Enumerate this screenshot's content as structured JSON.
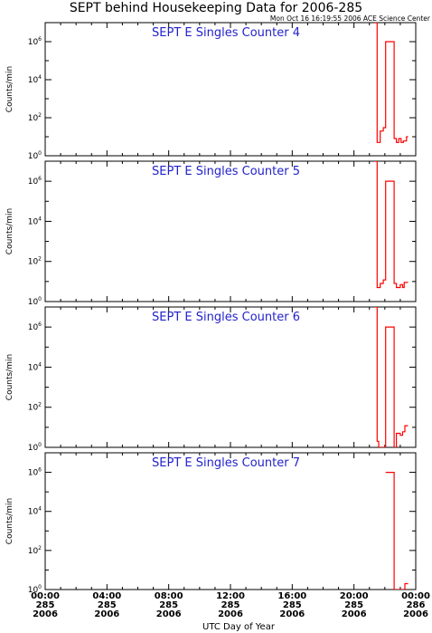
{
  "title": "SEPT behind Housekeeping Data for 2006-285",
  "timestamp": "Mon Oct 16 16:19:55 2006 ACE Science Center",
  "colors": {
    "series": "#ff0000",
    "panel_label": "#2222cc",
    "axes": "#000000"
  },
  "chart_data": {
    "type": "line",
    "xlabel": "UTC Day of Year",
    "ylabel": "Counts/min",
    "yscale": "log",
    "ylim": [
      1,
      10000000
    ],
    "xlim": [
      0,
      24
    ],
    "grid": false,
    "y_ticks": [
      {
        "base": "10",
        "exp": "0",
        "value": 1
      },
      {
        "base": "10",
        "exp": "2",
        "value": 100
      },
      {
        "base": "10",
        "exp": "4",
        "value": 10000
      },
      {
        "base": "10",
        "exp": "6",
        "value": 1000000
      }
    ],
    "x_ticks": [
      {
        "value": 0,
        "time": "00:00",
        "doy": "285",
        "year": "2006"
      },
      {
        "value": 4,
        "time": "04:00",
        "doy": "285",
        "year": "2006"
      },
      {
        "value": 8,
        "time": "08:00",
        "doy": "285",
        "year": "2006"
      },
      {
        "value": 12,
        "time": "12:00",
        "doy": "285",
        "year": "2006"
      },
      {
        "value": 16,
        "time": "16:00",
        "doy": "285",
        "year": "2006"
      },
      {
        "value": 20,
        "time": "20:00",
        "doy": "285",
        "year": "2006"
      },
      {
        "value": 24,
        "time": "00:00",
        "doy": "286",
        "year": "2006"
      }
    ],
    "panels": [
      {
        "label": "SEPT E Singles Counter 4",
        "points": [
          [
            21.3,
            10000000
          ],
          [
            21.5,
            10000000
          ],
          [
            21.5,
            5
          ],
          [
            21.7,
            5
          ],
          [
            21.7,
            20
          ],
          [
            21.9,
            20
          ],
          [
            21.9,
            30
          ],
          [
            22.05,
            30
          ],
          [
            22.05,
            1000000
          ],
          [
            22.6,
            1000000
          ],
          [
            22.6,
            8
          ],
          [
            22.75,
            8
          ],
          [
            22.75,
            5
          ],
          [
            22.9,
            5
          ],
          [
            22.9,
            8
          ],
          [
            23.05,
            8
          ],
          [
            23.05,
            5
          ],
          [
            23.2,
            5
          ],
          [
            23.2,
            6
          ],
          [
            23.4,
            6
          ],
          [
            23.4,
            10
          ],
          [
            23.5,
            10
          ]
        ]
      },
      {
        "label": "SEPT E Singles Counter 5",
        "points": [
          [
            21.3,
            10000000
          ],
          [
            21.5,
            10000000
          ],
          [
            21.5,
            5
          ],
          [
            21.7,
            5
          ],
          [
            21.7,
            8
          ],
          [
            21.9,
            8
          ],
          [
            21.9,
            12
          ],
          [
            22.05,
            12
          ],
          [
            22.05,
            1000000
          ],
          [
            22.6,
            1000000
          ],
          [
            22.6,
            8
          ],
          [
            22.75,
            8
          ],
          [
            22.75,
            5
          ],
          [
            23.0,
            5
          ],
          [
            23.0,
            7
          ],
          [
            23.15,
            7
          ],
          [
            23.15,
            5
          ],
          [
            23.25,
            5
          ],
          [
            23.25,
            9
          ],
          [
            23.5,
            9
          ]
        ]
      },
      {
        "label": "SEPT E Singles Counter 6",
        "points": [
          [
            21.3,
            10000000
          ],
          [
            21.5,
            10000000
          ],
          [
            21.5,
            2
          ],
          [
            21.6,
            2
          ],
          [
            21.6,
            1
          ],
          [
            22.05,
            1
          ],
          [
            22.05,
            1000000
          ],
          [
            22.6,
            1000000
          ],
          [
            22.6,
            1
          ],
          [
            22.75,
            1
          ],
          [
            22.75,
            5
          ],
          [
            23.0,
            5
          ],
          [
            23.0,
            4
          ],
          [
            23.15,
            4
          ],
          [
            23.15,
            6
          ],
          [
            23.3,
            6
          ],
          [
            23.3,
            12
          ],
          [
            23.5,
            12
          ]
        ]
      },
      {
        "label": "SEPT E Singles Counter 7",
        "points": [
          [
            22.05,
            1000000
          ],
          [
            22.6,
            1000000
          ],
          [
            22.6,
            1
          ],
          [
            23.3,
            1
          ],
          [
            23.3,
            2
          ],
          [
            23.5,
            2
          ]
        ]
      }
    ]
  }
}
